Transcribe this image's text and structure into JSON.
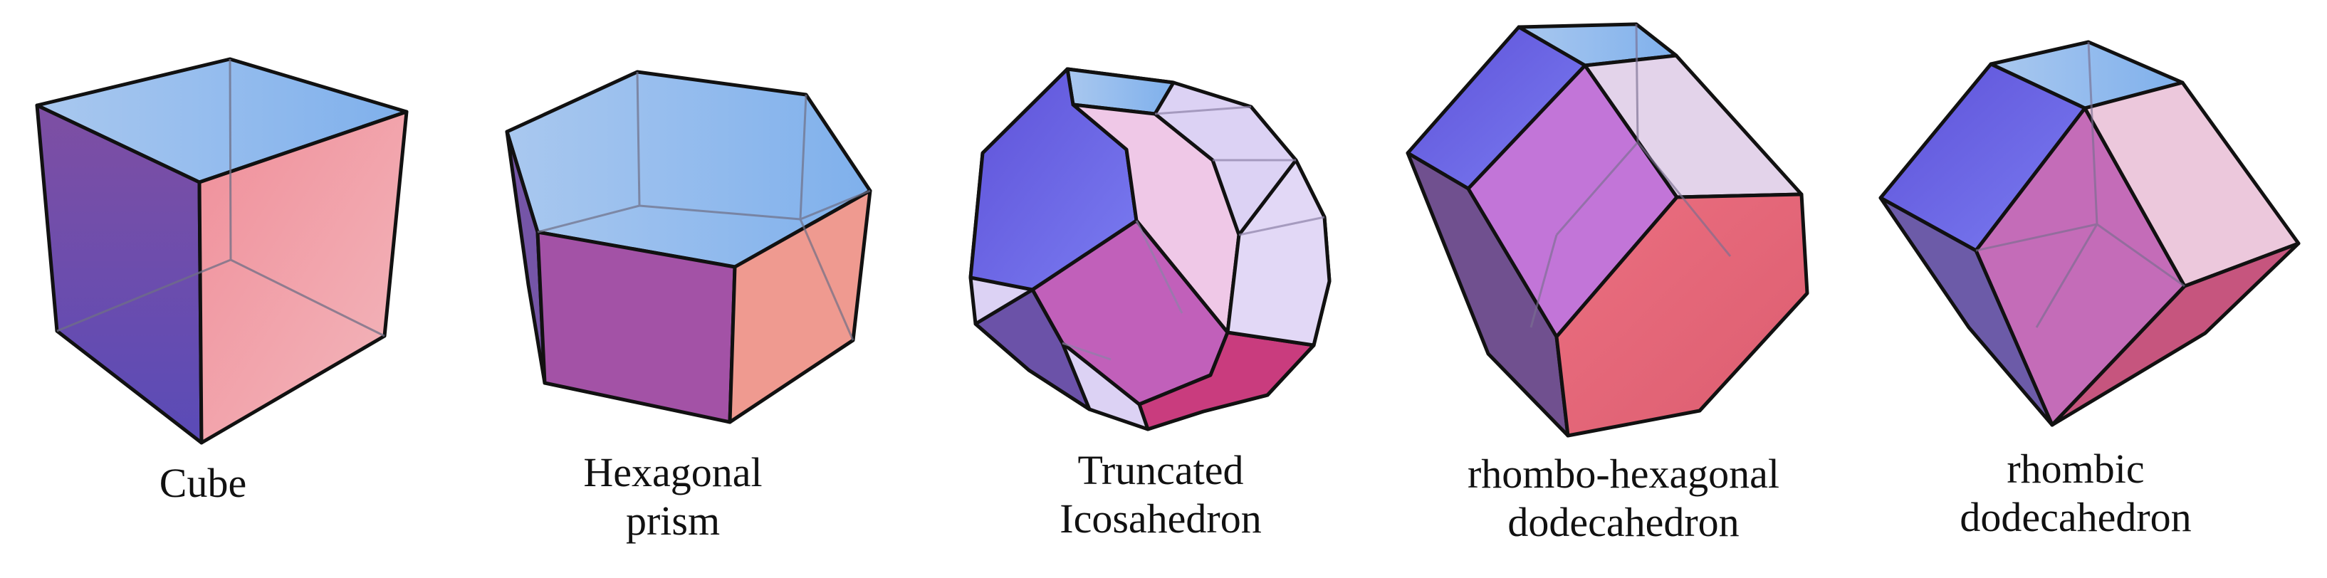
{
  "shapes": [
    {
      "id": "cube",
      "label": [
        "Cube"
      ]
    },
    {
      "id": "hexagonal-prism",
      "label": [
        "Hexagonal",
        "prism"
      ]
    },
    {
      "id": "truncated-icosahedron",
      "label": [
        "Truncated",
        "Icosahedron"
      ]
    },
    {
      "id": "rhombo-hexagonal-dodecahedron",
      "label": [
        "rhombo-hexagonal",
        "dodecahedron"
      ]
    },
    {
      "id": "rhombic-dodecahedron",
      "label": [
        "rhombic",
        "dodecahedron"
      ]
    }
  ],
  "colors": {
    "edge": "#111111",
    "top_face": "#9cc3ee",
    "blue_face": "#6b62e6",
    "purple_face": "#b05fc2",
    "pink_face": "#e8b4d6",
    "red_face": "#e36878",
    "lavender_face": "#dcd2f4"
  }
}
